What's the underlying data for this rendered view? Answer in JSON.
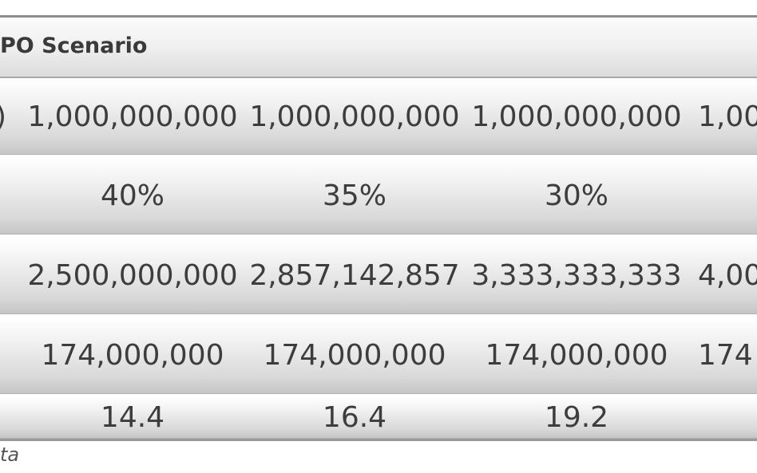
{
  "table": {
    "header_title": "PO Scenario",
    "rows": [
      {
        "edge": ")",
        "cells": [
          "1,000,000,000",
          "1,000,000,000",
          "1,000,000,000",
          "1,00"
        ]
      },
      {
        "edge": "",
        "cells": [
          "40%",
          "35%",
          "30%",
          ""
        ]
      },
      {
        "edge": "",
        "cells": [
          "2,500,000,000",
          "2,857,142,857",
          "3,333,333,333",
          "4,00"
        ]
      },
      {
        "edge": "",
        "cells": [
          "174,000,000",
          "174,000,000",
          "174,000,000",
          "174"
        ]
      },
      {
        "edge": "",
        "cells": [
          "14.4",
          "16.4",
          "19.2",
          ""
        ]
      }
    ]
  },
  "footer": {
    "source_fragment": "ta"
  }
}
